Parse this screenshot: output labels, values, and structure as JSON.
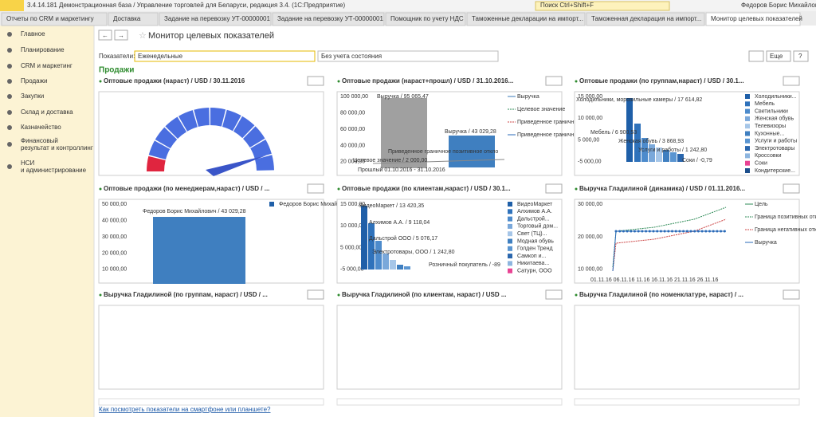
{
  "window": {
    "title": "3.4.14.181 Демонстрационная база / Управление торговлей для Беларуси, редакция 3.4.  (1С:Предприятие)",
    "search": "Поиск Ctrl+Shift+F",
    "user": "Федоров Борис Михайлович"
  },
  "tabs": [
    "Отчеты по CRM и маркетингу",
    "Доставка",
    "Задание на перевозку УТ-00000001 ...",
    "Задание на перевозку УТ-00000001 ...",
    "Помощник по учету НДС",
    "Таможенные декларации на импорт...",
    "Таможенная декларация на импорт...",
    "Монитор целевых показателей"
  ],
  "sidebar": [
    "Главное",
    "Планирование",
    "CRM и маркетинг",
    "Продажи",
    "Закупки",
    "Склад и доставка",
    "Казначейство",
    "Финансовый результат и контроллинг",
    "НСИ и администрирование"
  ],
  "page": {
    "title": "Монитор целевых показателей",
    "filter_label": "Показатели:",
    "filter_value": "Еженедельные",
    "state_value": "Без учета состояния",
    "more": "Еще",
    "help": "?",
    "section": "Продажи",
    "footer_link": "Как посмотреть показатели на смартфоне или планшете?"
  },
  "panels": [
    {
      "title": "Оптовые продажи (нараст) / USD / 30.11.2016",
      "axis": [],
      "labels": [],
      "legend": []
    },
    {
      "title": "Оптовые продажи (нараст+прошл) / USD / 31.10.2016...",
      "axis": [
        "100 000,00",
        "80 000,00",
        "60 000,00",
        "40 000,00",
        "20 000,00"
      ],
      "labels": [
        "Выручка / 95 065,47",
        "Выручка / 43 029,28",
        "Приведенное граничное позитивное откло",
        "Целевое значение / 2 000,00",
        "Прошлый 01.10.2016 - 31.10.2016"
      ],
      "legend": [
        "Выручка",
        "Целевое значение",
        "Приведенное граничное позитивное...",
        "Приведенное граничное негативное..."
      ]
    },
    {
      "title": "Оптовые продажи (по группам,нараст) / USD / 30.1...",
      "axis": [
        "15 000,00",
        "10 000,00",
        "5 000,00",
        "-5 000,00"
      ],
      "labels": [
        "Холодильники, морозильные камеры / 17 614,82",
        "Мебель / 6 900,53",
        "Женская обувь / 3 868,93",
        "Услуги и работы / 1 242,80",
        "Соки / -0,79"
      ],
      "legend": [
        "Холодильники...",
        "Мебель",
        "Светильники",
        "Женская обувь",
        "Телевизоры",
        "Кухонные...",
        "Услуги и работы",
        "Электротовары",
        "Кроссовки",
        "Соки",
        "Кондитерские..."
      ]
    },
    {
      "title": "Оптовые продажи (по менеджерам,нараст) / USD / ...",
      "axis": [
        "50 000,00",
        "40 000,00",
        "30 000,00",
        "20 000,00",
        "10 000,00"
      ],
      "labels": [
        "Федоров Борис Михайлович / 43 029,28"
      ],
      "legend": [
        "Федоров Борис Михайлович"
      ]
    },
    {
      "title": "Оптовые продажи (по клиентам,нараст) / USD / 30.1...",
      "axis": [
        "15 000,00",
        "10 000,00",
        "5 000,00",
        "-5 000,00"
      ],
      "labels": [
        "ВидеоМаркет / 13 420,35",
        "Алхимов А.А. / 9 118,04",
        "Дальстрой ООО / 5 076,17",
        "Электротовары, ООО / 1 242,80",
        "Розничный покупатель / -89"
      ],
      "legend": [
        "ВидеоМаркет",
        "Алхимов А.А.",
        "Дальстрой...",
        "Торговый дом...",
        "Свет (ТЦ)...",
        "Модная обувь",
        "Голден Тренд",
        "Самкоп и...",
        "Никитаева...",
        "Сатурн, ООО"
      ]
    },
    {
      "title": "Выручка Гладилиной (динамика) / USD / 01.11.2016...",
      "axis": [
        "30 000,00",
        "20 000,00",
        "10 000,00"
      ],
      "labels": [
        "01.11.16 06.11.16 11.16 16.11.16 21.11.16 26.11.16"
      ],
      "legend": [
        "Цель",
        "Граница позитивных отклонений",
        "Граница негативных отклонений",
        "Выручка"
      ]
    },
    {
      "title": "Выручка Гладилиной (по группам, нараст) / USD / ...",
      "axis": [],
      "labels": [],
      "legend": []
    },
    {
      "title": "Выручка Гладилиной (по клиентам, нараст) / USD ...",
      "axis": [],
      "labels": [],
      "legend": []
    },
    {
      "title": "Выручка Гладилиной (по номенклатуре, нараст) / ...",
      "axis": [],
      "labels": [],
      "legend": []
    }
  ]
}
